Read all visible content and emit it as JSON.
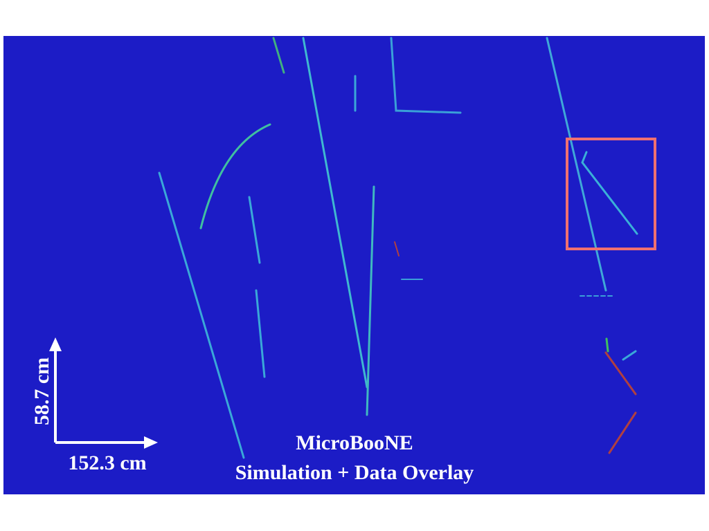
{
  "scale_bar": {
    "vertical": "58.7 cm",
    "horizontal": "152.3 cm"
  },
  "caption": {
    "title": "MicroBooNE",
    "subtitle": "Simulation + Data Overlay"
  }
}
